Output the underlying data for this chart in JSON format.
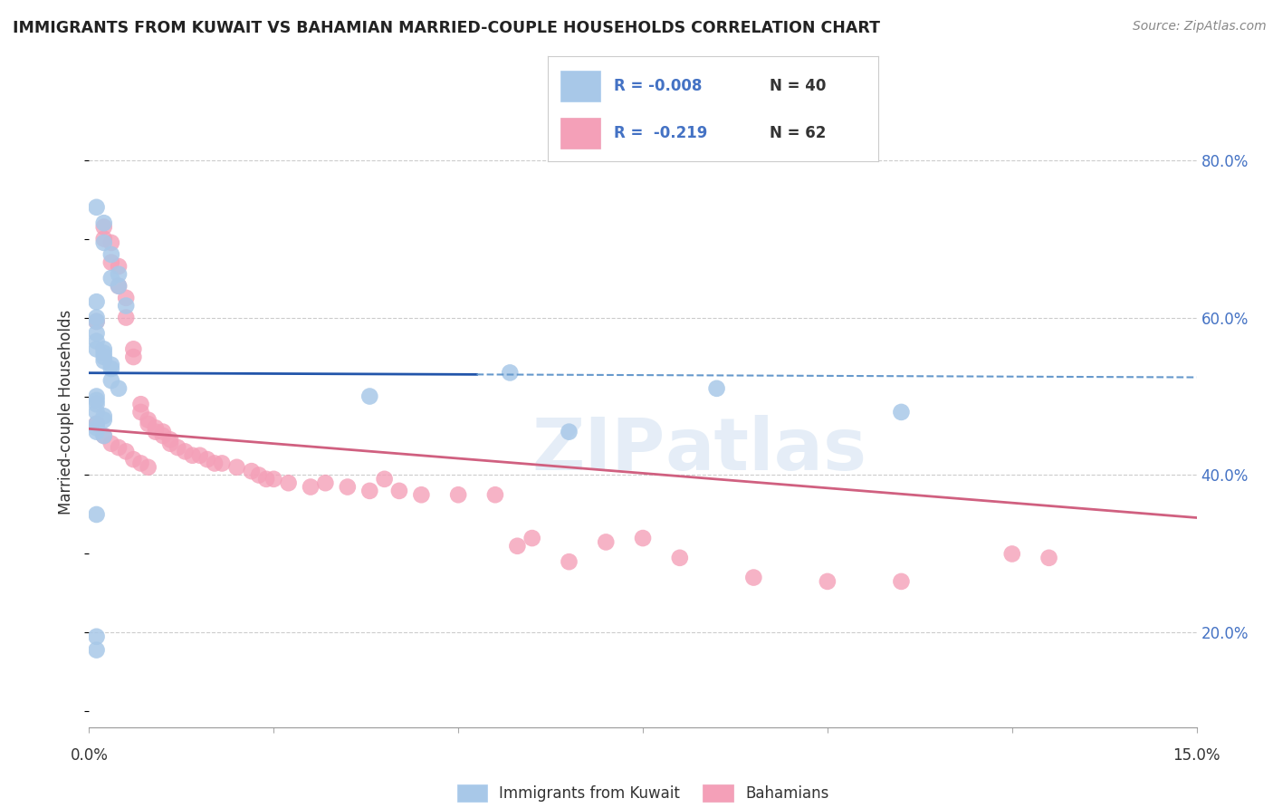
{
  "title": "IMMIGRANTS FROM KUWAIT VS BAHAMIAN MARRIED-COUPLE HOUSEHOLDS CORRELATION CHART",
  "source": "Source: ZipAtlas.com",
  "ylabel": "Married-couple Households",
  "yticks": [
    0.2,
    0.4,
    0.6,
    0.8
  ],
  "ytick_labels": [
    "20.0%",
    "40.0%",
    "60.0%",
    "80.0%"
  ],
  "xmin": 0.0,
  "xmax": 0.15,
  "ymin": 0.08,
  "ymax": 0.88,
  "legend_label1": "Immigrants from Kuwait",
  "legend_label2": "Bahamians",
  "color_blue": "#a8c8e8",
  "color_pink": "#f4a0b8",
  "line_blue_solid": "#2255aa",
  "line_blue_dashed": "#6699cc",
  "line_pink": "#d06080",
  "blue_r": -0.008,
  "blue_n": 40,
  "pink_r": -0.219,
  "pink_n": 62,
  "blue_scatter_x": [
    0.001,
    0.002,
    0.002,
    0.003,
    0.003,
    0.004,
    0.004,
    0.005,
    0.001,
    0.001,
    0.001,
    0.001,
    0.001,
    0.001,
    0.002,
    0.002,
    0.002,
    0.002,
    0.003,
    0.003,
    0.003,
    0.004,
    0.001,
    0.001,
    0.001,
    0.001,
    0.002,
    0.002,
    0.001,
    0.001,
    0.001,
    0.002,
    0.001,
    0.001,
    0.065,
    0.085,
    0.11,
    0.057,
    0.038,
    0.001
  ],
  "blue_scatter_y": [
    0.74,
    0.72,
    0.695,
    0.68,
    0.65,
    0.655,
    0.64,
    0.615,
    0.62,
    0.6,
    0.595,
    0.58,
    0.57,
    0.56,
    0.56,
    0.555,
    0.55,
    0.545,
    0.54,
    0.535,
    0.52,
    0.51,
    0.5,
    0.495,
    0.49,
    0.48,
    0.475,
    0.47,
    0.465,
    0.46,
    0.455,
    0.45,
    0.35,
    0.195,
    0.455,
    0.51,
    0.48,
    0.53,
    0.5,
    0.178
  ],
  "pink_scatter_x": [
    0.001,
    0.002,
    0.002,
    0.003,
    0.003,
    0.004,
    0.004,
    0.005,
    0.005,
    0.006,
    0.006,
    0.007,
    0.007,
    0.008,
    0.008,
    0.009,
    0.009,
    0.01,
    0.01,
    0.011,
    0.011,
    0.012,
    0.013,
    0.014,
    0.015,
    0.016,
    0.017,
    0.018,
    0.02,
    0.022,
    0.023,
    0.024,
    0.025,
    0.027,
    0.03,
    0.032,
    0.035,
    0.038,
    0.04,
    0.042,
    0.045,
    0.05,
    0.055,
    0.058,
    0.06,
    0.065,
    0.07,
    0.075,
    0.08,
    0.09,
    0.1,
    0.11,
    0.125,
    0.13,
    0.001,
    0.002,
    0.003,
    0.004,
    0.005,
    0.006,
    0.007,
    0.008
  ],
  "pink_scatter_y": [
    0.595,
    0.715,
    0.7,
    0.695,
    0.67,
    0.665,
    0.64,
    0.625,
    0.6,
    0.56,
    0.55,
    0.49,
    0.48,
    0.47,
    0.465,
    0.46,
    0.455,
    0.455,
    0.45,
    0.445,
    0.44,
    0.435,
    0.43,
    0.425,
    0.425,
    0.42,
    0.415,
    0.415,
    0.41,
    0.405,
    0.4,
    0.395,
    0.395,
    0.39,
    0.385,
    0.39,
    0.385,
    0.38,
    0.395,
    0.38,
    0.375,
    0.375,
    0.375,
    0.31,
    0.32,
    0.29,
    0.315,
    0.32,
    0.295,
    0.27,
    0.265,
    0.265,
    0.3,
    0.295,
    0.465,
    0.45,
    0.44,
    0.435,
    0.43,
    0.42,
    0.415,
    0.41
  ]
}
